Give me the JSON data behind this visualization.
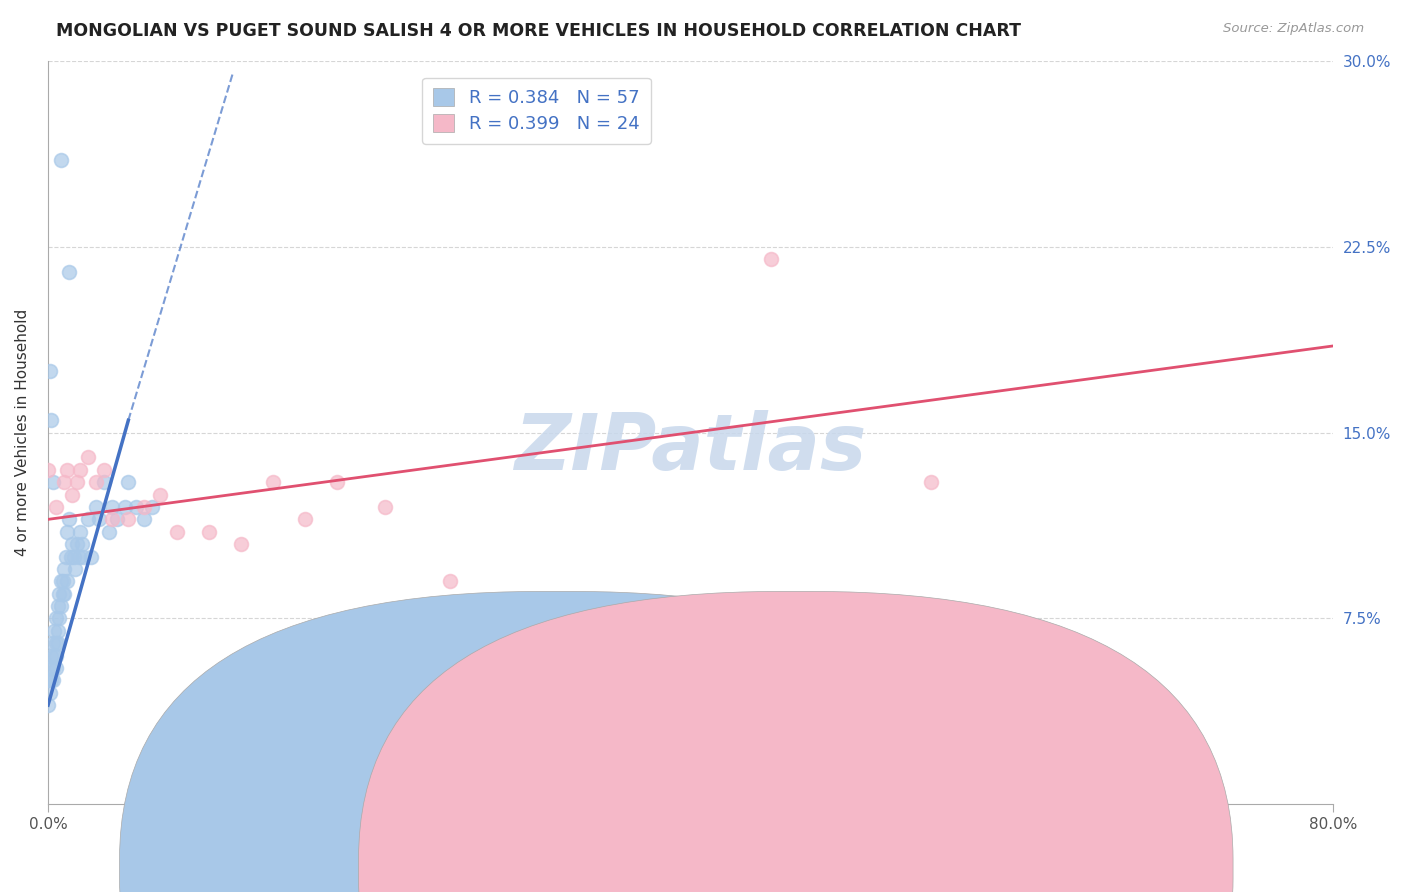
{
  "title": "MONGOLIAN VS PUGET SOUND SALISH 4 OR MORE VEHICLES IN HOUSEHOLD CORRELATION CHART",
  "source": "Source: ZipAtlas.com",
  "ylabel": "4 or more Vehicles in Household",
  "xlim": [
    0.0,
    0.8
  ],
  "ylim": [
    0.0,
    0.3
  ],
  "ytick_vals": [
    0.075,
    0.15,
    0.225,
    0.3
  ],
  "ytick_labels": [
    "7.5%",
    "15.0%",
    "22.5%",
    "30.0%"
  ],
  "xtick_vals": [
    0.0,
    0.8
  ],
  "xtick_labels": [
    "0.0%",
    "80.0%"
  ],
  "legend_label1": "R = 0.384   N = 57",
  "legend_label2": "R = 0.399   N = 24",
  "mongolian_color": "#a8c8e8",
  "puget_color": "#f5b8c8",
  "line_color_mongolian": "#4472c4",
  "line_color_puget": "#e05070",
  "watermark": "ZIPatlas",
  "watermark_color": "#c8d8ec",
  "mongolian_x": [
    0.0,
    0.0,
    0.001,
    0.001,
    0.002,
    0.002,
    0.003,
    0.003,
    0.003,
    0.004,
    0.004,
    0.005,
    0.005,
    0.005,
    0.005,
    0.006,
    0.006,
    0.006,
    0.007,
    0.007,
    0.008,
    0.008,
    0.009,
    0.009,
    0.01,
    0.01,
    0.011,
    0.012,
    0.012,
    0.013,
    0.014,
    0.015,
    0.016,
    0.017,
    0.018,
    0.019,
    0.02,
    0.021,
    0.022,
    0.025,
    0.027,
    0.03,
    0.032,
    0.035,
    0.038,
    0.04,
    0.043,
    0.048,
    0.05,
    0.055,
    0.06,
    0.065,
    0.008,
    0.013,
    0.001,
    0.002,
    0.003
  ],
  "mongolian_y": [
    0.05,
    0.04,
    0.055,
    0.045,
    0.06,
    0.05,
    0.065,
    0.055,
    0.05,
    0.07,
    0.06,
    0.075,
    0.065,
    0.06,
    0.055,
    0.08,
    0.07,
    0.065,
    0.085,
    0.075,
    0.09,
    0.08,
    0.09,
    0.085,
    0.095,
    0.085,
    0.1,
    0.11,
    0.09,
    0.115,
    0.1,
    0.105,
    0.1,
    0.095,
    0.105,
    0.1,
    0.11,
    0.105,
    0.1,
    0.115,
    0.1,
    0.12,
    0.115,
    0.13,
    0.11,
    0.12,
    0.115,
    0.12,
    0.13,
    0.12,
    0.115,
    0.12,
    0.26,
    0.215,
    0.175,
    0.155,
    0.13
  ],
  "puget_x": [
    0.0,
    0.005,
    0.01,
    0.012,
    0.015,
    0.018,
    0.02,
    0.025,
    0.03,
    0.035,
    0.04,
    0.05,
    0.06,
    0.07,
    0.08,
    0.1,
    0.12,
    0.14,
    0.16,
    0.18,
    0.21,
    0.25,
    0.45,
    0.55
  ],
  "puget_y": [
    0.135,
    0.12,
    0.13,
    0.135,
    0.125,
    0.13,
    0.135,
    0.14,
    0.13,
    0.135,
    0.115,
    0.115,
    0.12,
    0.125,
    0.11,
    0.11,
    0.105,
    0.13,
    0.115,
    0.13,
    0.12,
    0.09,
    0.22,
    0.13
  ],
  "puget_line_x0": 0.0,
  "puget_line_y0": 0.115,
  "puget_line_x1": 0.8,
  "puget_line_y1": 0.185,
  "mongolian_line_solid_x0": 0.0,
  "mongolian_line_solid_y0": 0.04,
  "mongolian_line_solid_x1": 0.05,
  "mongolian_line_solid_y1": 0.155,
  "mongolian_line_dashed_x0": 0.05,
  "mongolian_line_dashed_y0": 0.155,
  "mongolian_line_dashed_x1": 0.115,
  "mongolian_line_dashed_y1": 0.295
}
